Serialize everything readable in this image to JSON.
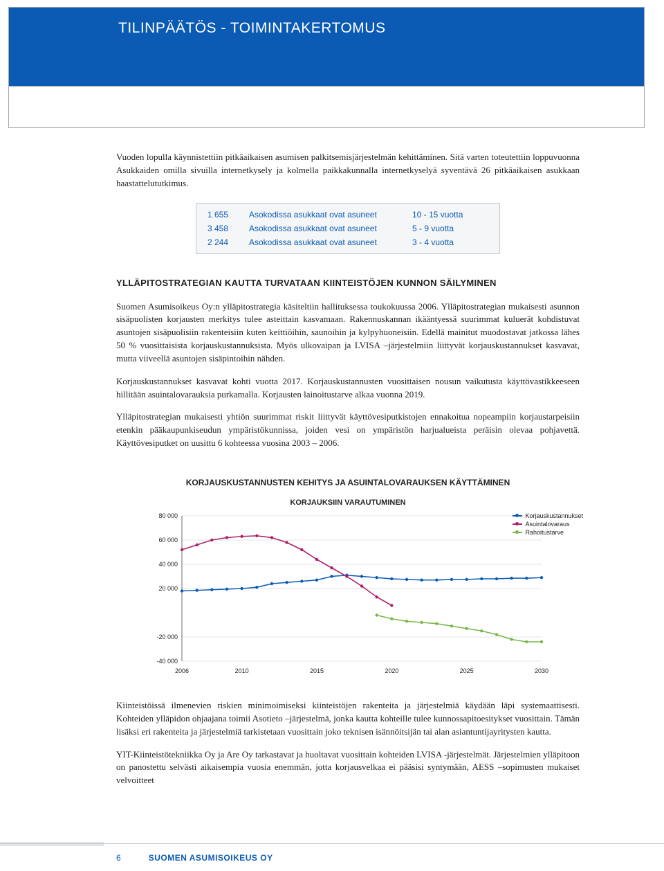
{
  "header": {
    "title": "TILINPÄÄTÖS - TOIMINTAKERTOMUS"
  },
  "intro_paragraph": "Vuoden lopulla käynnistettiin pitkäaikaisen asumisen palkitsemisjärjestelmän kehittäminen. Sitä varten toteutettiin loppuvuonna Asukkaiden omilla sivuilla internetkysely ja kolmella paikkakunnalla internetkyselyä syventävä 26 pitkäaikaisen asukkaan haastattelututkimus.",
  "info_table": {
    "rows": [
      {
        "count": "1 655",
        "desc": "Asokodissa asukkaat ovat asuneet",
        "range": "10 - 15 vuotta"
      },
      {
        "count": "3 458",
        "desc": "Asokodissa asukkaat ovat asuneet",
        "range": "5 - 9 vuotta"
      },
      {
        "count": "2 244",
        "desc": "Asokodissa asukkaat ovat asuneet",
        "range": "3 - 4 vuotta"
      }
    ]
  },
  "section_heading": "YLLÄPITOSTRATEGIAN KAUTTA TURVATAAN KIINTEISTÖJEN KUNNON SÄILYMINEN",
  "main_paragraph_1": "Suomen Asumisoikeus Oy:n ylläpitostrategia käsiteltiin hallituksessa toukokuussa 2006. Ylläpitostrategian mukaisesti asunnon sisäpuolisten korjausten merkitys tulee asteittain kasvamaan. Rakennuskannan ikääntyessä suurimmat kuluerät kohdistuvat asuntojen sisäpuolisiin rakenteisiin kuten keittiöihin, saunoihin ja kylpyhuoneisiin. Edellä mainitut muodostavat jatkossa lähes 50 % vuosittaisista korjauskustannuksista. Myös ulkovaipan ja LVISA –järjestelmiin liittyvät korjauskustannukset kasvavat, mutta viiveellä asuntojen sisäpintoihin nähden.",
  "main_paragraph_2": "Korjauskustannukset kasvavat kohti vuotta 2017. Korjauskustannusten vuosittaisen nousun vaikutusta käyttövastikkeeseen hillitään asuintalovarauksia purkamalla. Korjausten lainoitustarve alkaa vuonna 2019.",
  "main_paragraph_3": "Ylläpitostrategian mukaisesti yhtiön suurimmat riskit liittyvät käyttövesiputkistojen ennakoitua nopeampiin korjaustarpeisiin etenkin pääkaupunkiseudun ympäristökunnissa, joiden vesi on ympäristön harjualueista peräisin olevaa pohjavettä. Käyttövesiputket on uusittu 6 kohteessa vuosina 2003 – 2006.",
  "chart": {
    "title": "KORJAUSKUSTANNUSTEN KEHITYS JA ASUINTALOVARAUKSEN KÄYTTÄMINEN",
    "subtitle": "KORJAUKSIIN VARAUTUMINEN",
    "type": "line",
    "background_color": "#ffffff",
    "grid_color": "#cccccc",
    "xlim": [
      2006,
      2030
    ],
    "ylim": [
      -40000,
      80000
    ],
    "xticks": [
      2006,
      2010,
      2015,
      2020,
      2025,
      2030
    ],
    "yticks": [
      -40000,
      -20000,
      20000,
      40000,
      60000,
      80000
    ],
    "ytick_labels": [
      "-40 000",
      "-20 000",
      "20 000",
      "40 000",
      "60 000",
      "80 000"
    ],
    "x_years": [
      2006,
      2007,
      2008,
      2009,
      2010,
      2011,
      2012,
      2013,
      2014,
      2015,
      2016,
      2017,
      2018,
      2019,
      2020,
      2021,
      2022,
      2023,
      2024,
      2025,
      2026,
      2027,
      2028,
      2029,
      2030
    ],
    "series": [
      {
        "name": "Korjauskustannukset",
        "color": "#0b5bb5",
        "values": [
          18000,
          18500,
          19000,
          19500,
          20000,
          21000,
          24000,
          25000,
          26000,
          27000,
          30000,
          31000,
          30000,
          29000,
          28000,
          27500,
          27000,
          27000,
          27500,
          27500,
          28000,
          28000,
          28500,
          28500,
          29000
        ]
      },
      {
        "name": "Asuintalovaraus",
        "color": "#ad1f6a",
        "values": [
          52000,
          56000,
          60000,
          62000,
          63000,
          63500,
          62000,
          58000,
          52000,
          44000,
          37000,
          30000,
          22000,
          13000,
          6000
        ]
      },
      {
        "name": "Rahoitustarve",
        "color": "#7bb54a",
        "values": [
          null,
          null,
          null,
          null,
          null,
          null,
          null,
          null,
          null,
          null,
          null,
          null,
          null,
          -2000,
          -5000,
          -7000,
          -8000,
          -9000,
          -11000,
          -13000,
          -15000,
          -18000,
          -22000,
          -24000,
          -24000
        ]
      }
    ],
    "legend_labels": [
      "Korjauskustannukset",
      "Asuintalovaraus",
      "Rahoitustarve"
    ],
    "marker_radius": 2.2,
    "line_width": 1.6
  },
  "closing_paragraph_1": "Kiinteistöissä ilmenevien riskien minimoimiseksi kiinteistöjen rakenteita ja järjestelmiä käydään läpi systemaattisesti. Kohteiden ylläpidon ohjaajana toimii Asotieto –järjestelmä, jonka kautta kohteille tulee kunnossapitoesitykset vuosittain. Tämän lisäksi eri rakenteita ja järjestelmiä tarkistetaan vuosittain joko teknisen isännöitsijän tai alan asiantuntijayritysten kautta.",
  "closing_paragraph_2": "YIT-Kiinteistötekniikka Oy ja Are Oy tarkastavat ja huoltavat vuosittain kohteiden LVISA -järjestelmät. Järjestelmien ylläpitoon on panostettu selvästi aikaisempia vuosia enemmän, jotta korjausvelkaa ei pääsisi syntymään, AESS –sopimusten mukaiset velvoitteet",
  "footer": {
    "page_number": "6",
    "brand": "SUOMEN ASUMISOIKEUS OY"
  }
}
